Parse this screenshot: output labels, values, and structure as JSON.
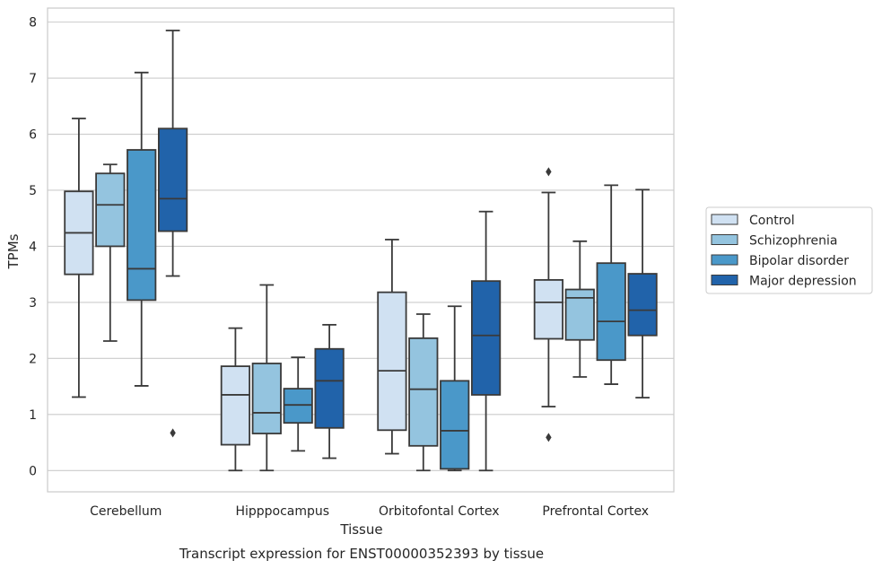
{
  "chart_data": {
    "type": "boxplot",
    "title": "",
    "caption": "Transcript expression for ENST00000352393 by tissue",
    "xlabel": "Tissue",
    "ylabel": "TPMs",
    "ylim": [
      -0.38,
      8.25
    ],
    "yticks": [
      0,
      1,
      2,
      3,
      4,
      5,
      6,
      7,
      8
    ],
    "grid": "horizontal",
    "legend_position": "right",
    "categories": [
      "Cerebellum",
      "Hipppocampus",
      "Orbitofontal Cortex",
      "Prefrontal Cortex"
    ],
    "series": [
      {
        "name": "Control",
        "color": "#d0e1f2",
        "boxes": [
          {
            "whislo": 1.31,
            "q1": 3.5,
            "med": 4.24,
            "q3": 4.98,
            "whishi": 6.28,
            "fliers": []
          },
          {
            "whislo": 0.0,
            "q1": 0.46,
            "med": 1.35,
            "q3": 1.86,
            "whishi": 2.54,
            "fliers": []
          },
          {
            "whislo": 0.3,
            "q1": 0.72,
            "med": 1.78,
            "q3": 3.18,
            "whishi": 4.12,
            "fliers": []
          },
          {
            "whislo": 1.14,
            "q1": 2.35,
            "med": 3.0,
            "q3": 3.4,
            "whishi": 4.96,
            "fliers": [
              5.33,
              0.59
            ]
          }
        ]
      },
      {
        "name": "Schizophrenia",
        "color": "#94c4df",
        "boxes": [
          {
            "whislo": 2.31,
            "q1": 4.0,
            "med": 4.74,
            "q3": 5.3,
            "whishi": 5.46,
            "fliers": []
          },
          {
            "whislo": 0.0,
            "q1": 0.66,
            "med": 1.03,
            "q3": 1.91,
            "whishi": 3.31,
            "fliers": []
          },
          {
            "whislo": 0.0,
            "q1": 0.44,
            "med": 1.45,
            "q3": 2.36,
            "whishi": 2.79,
            "fliers": []
          },
          {
            "whislo": 1.67,
            "q1": 2.33,
            "med": 3.08,
            "q3": 3.23,
            "whishi": 4.09,
            "fliers": []
          }
        ]
      },
      {
        "name": "Bipolar disorder",
        "color": "#4a98c9",
        "boxes": [
          {
            "whislo": 1.51,
            "q1": 3.04,
            "med": 3.6,
            "q3": 5.72,
            "whishi": 7.1,
            "fliers": []
          },
          {
            "whislo": 0.35,
            "q1": 0.85,
            "med": 1.17,
            "q3": 1.46,
            "whishi": 2.02,
            "fliers": []
          },
          {
            "whislo": 0.0,
            "q1": 0.03,
            "med": 0.71,
            "q3": 1.6,
            "whishi": 2.93,
            "fliers": []
          },
          {
            "whislo": 1.54,
            "q1": 1.97,
            "med": 2.66,
            "q3": 3.7,
            "whishi": 5.09,
            "fliers": []
          }
        ]
      },
      {
        "name": "Major depression",
        "color": "#2163aa",
        "boxes": [
          {
            "whislo": 3.47,
            "q1": 4.27,
            "med": 4.85,
            "q3": 6.1,
            "whishi": 7.85,
            "fliers": [
              0.67
            ]
          },
          {
            "whislo": 0.22,
            "q1": 0.76,
            "med": 1.6,
            "q3": 2.17,
            "whishi": 2.6,
            "fliers": []
          },
          {
            "whislo": 0.0,
            "q1": 1.35,
            "med": 2.41,
            "q3": 3.38,
            "whishi": 4.62,
            "fliers": []
          },
          {
            "whislo": 1.3,
            "q1": 2.41,
            "med": 2.86,
            "q3": 3.51,
            "whishi": 5.01,
            "fliers": []
          }
        ]
      }
    ]
  }
}
